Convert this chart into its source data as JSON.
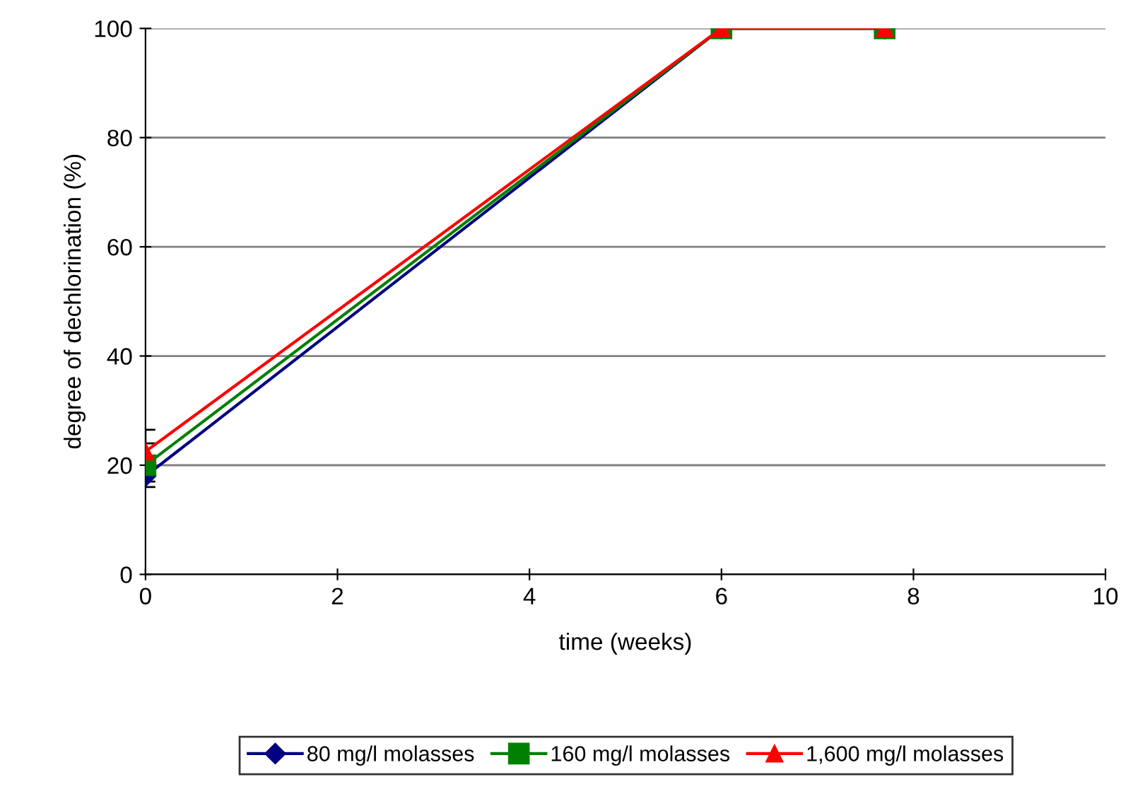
{
  "chart_data": {
    "type": "line",
    "xlabel": "time (weeks)",
    "ylabel": "degree of dechlorination (%)",
    "x": [
      0,
      6,
      7.7
    ],
    "series": [
      {
        "name": "80 mg/l molasses",
        "color": "#000080",
        "marker": "diamond",
        "values": [
          18,
          100,
          100
        ],
        "errors": [
          1,
          null,
          null
        ]
      },
      {
        "name": "160 mg/l molasses",
        "color": "#008000",
        "marker": "square",
        "values": [
          20,
          100,
          100
        ],
        "errors": [
          4,
          null,
          null
        ]
      },
      {
        "name": "1,600 mg/l molasses",
        "color": "#ff0000",
        "marker": "triangle",
        "values": [
          22.5,
          100,
          100
        ],
        "errors": [
          4,
          null,
          null
        ]
      }
    ],
    "xlim": [
      0,
      10
    ],
    "xticks": [
      0,
      2,
      4,
      6,
      8,
      10
    ],
    "ylim": [
      0,
      100
    ],
    "yticks": [
      0,
      20,
      40,
      60,
      80,
      100
    ],
    "grid": "y",
    "legend": "bottom"
  }
}
